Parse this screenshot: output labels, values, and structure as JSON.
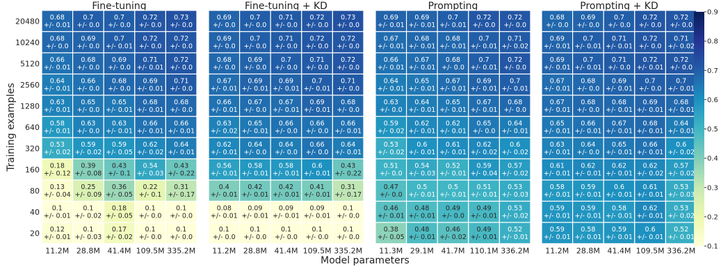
{
  "chart_data": {
    "type": "heatmap",
    "xlabel": "Model parameters",
    "ylabel": "Training examples",
    "y_categories": [
      "20480",
      "10240",
      "5120",
      "2560",
      "1280",
      "640",
      "320",
      "160",
      "80",
      "40",
      "20"
    ],
    "colorbar": {
      "range": [
        0.1,
        0.9
      ],
      "ticks": [
        "0.1",
        "0.2",
        "0.3",
        "0.4",
        "0.5",
        "0.6",
        "0.7",
        "0.8",
        "0.9"
      ],
      "colormap": "YlGnBu"
    },
    "panels": [
      {
        "title": "Fine-tuning",
        "x_categories": [
          "11.2M",
          "28.8M",
          "41.4M",
          "109.5M",
          "335.2M"
        ],
        "mean": [
          [
            0.68,
            0.7,
            0.7,
            0.72,
            0.73
          ],
          [
            0.68,
            0.69,
            0.7,
            0.72,
            0.72
          ],
          [
            0.66,
            0.68,
            0.69,
            0.71,
            0.72
          ],
          [
            0.64,
            0.66,
            0.68,
            0.69,
            0.71
          ],
          [
            0.63,
            0.65,
            0.65,
            0.68,
            0.68
          ],
          [
            0.58,
            0.63,
            0.63,
            0.66,
            0.66
          ],
          [
            0.53,
            0.59,
            0.59,
            0.62,
            0.64
          ],
          [
            0.18,
            0.39,
            0.43,
            0.54,
            0.43
          ],
          [
            0.13,
            0.25,
            0.36,
            0.22,
            0.31
          ],
          [
            0.1,
            0.1,
            0.18,
            0.1,
            0.1
          ],
          [
            0.12,
            0.1,
            0.17,
            0.1,
            0.1
          ]
        ],
        "std": [
          [
            "0.01",
            "0.0",
            "0.0",
            "0.0",
            "0.0"
          ],
          [
            "0.0",
            "0.0",
            "0.01",
            "0.0",
            "0.0"
          ],
          [
            "0.01",
            "0.0",
            "0.0",
            "0.01",
            "0.0"
          ],
          [
            "0.01",
            "0.0",
            "0.0",
            "0.01",
            "0.0"
          ],
          [
            "0.01",
            "0.0",
            "0.01",
            "0.01",
            "0.0"
          ],
          [
            "0.01",
            "0.0",
            "0.01",
            "0.01",
            "0.01"
          ],
          [
            "0.02",
            "0.02",
            "0.05",
            "0.02",
            "0.01"
          ],
          [
            "0.12",
            "0.08",
            "0.1",
            "0.03",
            "0.22"
          ],
          [
            "0.04",
            "0.09",
            "0.05",
            "0.1",
            "0.17"
          ],
          [
            "0.01",
            "0.02",
            "0.05",
            "0.0",
            "0.0"
          ],
          [
            "0.01",
            "0.03",
            "0.02",
            "0.0",
            "0.0"
          ]
        ]
      },
      {
        "title": "Fine-tuning + KD",
        "x_categories": [
          "11.2M",
          "28.8M",
          "41.4M",
          "109.5M",
          "335.2M"
        ],
        "mean": [
          [
            0.69,
            0.7,
            0.71,
            0.72,
            0.73
          ],
          [
            0.69,
            0.7,
            0.71,
            0.72,
            0.72
          ],
          [
            0.68,
            0.69,
            0.7,
            0.71,
            0.72
          ],
          [
            0.67,
            0.69,
            0.69,
            0.7,
            0.71
          ],
          [
            0.66,
            0.67,
            0.67,
            0.69,
            0.68
          ],
          [
            0.63,
            0.65,
            0.66,
            0.66,
            0.66
          ],
          [
            0.62,
            0.64,
            0.64,
            0.66,
            0.64
          ],
          [
            0.56,
            0.58,
            0.58,
            0.6,
            0.43
          ],
          [
            0.4,
            0.42,
            0.42,
            0.41,
            0.31
          ],
          [
            0.08,
            0.09,
            0.09,
            0.09,
            0.1
          ],
          [
            0.1,
            0.1,
            0.1,
            0.1,
            0.1
          ]
        ],
        "std": [
          [
            "0.0",
            "0.0",
            "0.0",
            "0.0",
            "0.0"
          ],
          [
            "0.0",
            "0.0",
            "0.0",
            "0.0",
            "0.0"
          ],
          [
            "0.0",
            "0.0",
            "0.0",
            "0.0",
            "0.0"
          ],
          [
            "0.01",
            "0.01",
            "0.01",
            "0.01",
            "0.0"
          ],
          [
            "0.01",
            "0.0",
            "0.01",
            "0.01",
            "0.0"
          ],
          [
            "0.02",
            "0.01",
            "0.0",
            "0.0",
            "0.01"
          ],
          [
            "0.01",
            "0.0",
            "0.0",
            "0.0",
            "0.01"
          ],
          [
            "0.01",
            "0.01",
            "0.01",
            "0.01",
            "0.22"
          ],
          [
            "0.01",
            "0.01",
            "0.01",
            "0.01",
            "0.17"
          ],
          [
            "0.01",
            "0.01",
            "0.01",
            "0.01",
            "0.0"
          ],
          [
            "0.0",
            "0.0",
            "0.0",
            "0.0",
            "0.0"
          ]
        ]
      },
      {
        "title": "Prompting",
        "x_categories": [
          "11.3M",
          "29.1M",
          "41.7M",
          "110.1M",
          "336.2M"
        ],
        "mean": [
          [
            0.69,
            0.69,
            0.7,
            0.72,
            0.72
          ],
          [
            0.67,
            0.68,
            0.68,
            0.7,
            0.71
          ],
          [
            0.66,
            0.67,
            0.68,
            0.7,
            0.72
          ],
          [
            0.64,
            0.65,
            0.67,
            0.69,
            0.7
          ],
          [
            0.63,
            0.64,
            0.65,
            0.67,
            0.68
          ],
          [
            0.59,
            0.62,
            0.62,
            0.65,
            0.64
          ],
          [
            0.53,
            0.6,
            0.61,
            0.62,
            0.6
          ],
          [
            0.51,
            0.54,
            0.52,
            0.59,
            0.57
          ],
          [
            0.47,
            0.5,
            0.5,
            0.51,
            0.53
          ],
          [
            0.46,
            0.48,
            0.49,
            0.49,
            0.53
          ],
          [
            0.38,
            0.48,
            0.46,
            0.49,
            0.52
          ]
        ],
        "std": [
          [
            "0.01",
            "0.01",
            "0.01",
            "0.0",
            "0.0"
          ],
          [
            "0.01",
            "0.01",
            "0.01",
            "0.01",
            "0.02"
          ],
          [
            "0.01",
            "0.01",
            "0.0",
            "0.01",
            "0.0"
          ],
          [
            "0.01",
            "0.01",
            "0.01",
            "0.01",
            "0.01"
          ],
          [
            "0.0",
            "0.01",
            "0.01",
            "0.01",
            "0.0"
          ],
          [
            "0.02",
            "0.01",
            "0.01",
            "0.0",
            "0.01"
          ],
          [
            "0.02",
            "0.01",
            "0.01",
            "0.02",
            "0.02"
          ],
          [
            "0.0",
            "0.03",
            "0.01",
            "0.04",
            "0.02"
          ],
          [
            "0.0",
            "0.01",
            "0.01",
            "0.01",
            "0.03"
          ],
          [
            "0.01",
            "0.01",
            "0.0",
            "0.01",
            "0.02"
          ],
          [
            "0.05",
            "0.01",
            "0.02",
            "0.01",
            "0.01"
          ]
        ]
      },
      {
        "title": "Prompting + KD",
        "x_categories": [
          "11.2M",
          "28.8M",
          "41.4M",
          "109.5M",
          "336.2M"
        ],
        "mean": [
          [
            0.68,
            0.69,
            0.7,
            0.72,
            0.72
          ],
          [
            0.69,
            0.7,
            0.71,
            0.72,
            0.71
          ],
          [
            0.69,
            0.7,
            0.71,
            0.72,
            0.72
          ],
          [
            0.67,
            0.68,
            0.69,
            0.7,
            0.7
          ],
          [
            0.67,
            0.68,
            0.68,
            0.69,
            0.68
          ],
          [
            0.65,
            0.66,
            0.67,
            0.68,
            0.64
          ],
          [
            0.63,
            0.64,
            0.65,
            0.66,
            0.6
          ],
          [
            0.61,
            0.62,
            0.62,
            0.62,
            0.57
          ],
          [
            0.58,
            0.59,
            0.6,
            0.61,
            0.53
          ],
          [
            0.59,
            0.59,
            0.58,
            0.62,
            0.53
          ],
          [
            0.59,
            0.58,
            0.59,
            0.6,
            0.52
          ]
        ],
        "std": [
          [
            "0.0",
            "0.0",
            "0.0",
            "0.0",
            "0.0"
          ],
          [
            "0.01",
            "0.01",
            "0.01",
            "0.0",
            "0.02"
          ],
          [
            "0.01",
            "0.01",
            "0.0",
            "0.01",
            "0.0"
          ],
          [
            "0.01",
            "0.0",
            "0.01",
            "0.0",
            "0.01"
          ],
          [
            "0.01",
            "0.0",
            "0.01",
            "0.01",
            "0.01"
          ],
          [
            "0.01",
            "0.01",
            "0.01",
            "0.01",
            "0.01"
          ],
          [
            "0.01",
            "0.0",
            "0.01",
            "0.01",
            "0.02"
          ],
          [
            "0.01",
            "0.01",
            "0.01",
            "0.02",
            "0.02"
          ],
          [
            "0.01",
            "0.01",
            "0.01",
            "0.01",
            "0.03"
          ],
          [
            "0.01",
            "0.01",
            "0.01",
            "0.01",
            "0.02"
          ],
          [
            "0.01",
            "0.01",
            "0.01",
            "0.01",
            "0.01"
          ]
        ]
      }
    ]
  }
}
